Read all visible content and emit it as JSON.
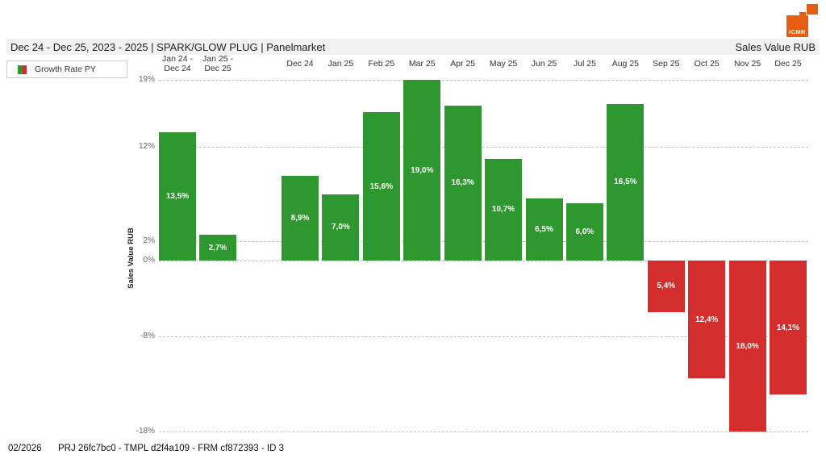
{
  "logo": {
    "text": "ICMR",
    "color": "#e55e14"
  },
  "header": {
    "title": "Dec 24 - Dec 25, 2023 - 2025 | SPARK/GLOW PLUG | Panelmarket",
    "measure": "Sales Value RUB"
  },
  "legend": {
    "label": "Growth Rate PY"
  },
  "footer": {
    "period": "02/2026",
    "reference": "PRJ 26fc7bc0 - TMPL d2f4a109 - FRM cf872393 - ID 3"
  },
  "chart_data": {
    "type": "bar",
    "title": "Growth Rate PY",
    "ylabel": "Sales Value RUB",
    "value_suffix": "%",
    "ylim": [
      -18,
      19
    ],
    "grid": true,
    "legend_position": "top-left",
    "gridline_values": [
      19,
      12,
      2,
      0,
      -8,
      -18
    ],
    "tick_labels": [
      "19%",
      "12%",
      "2%",
      "0%",
      "-8%",
      "-18%"
    ],
    "positive_color": "#2f972f",
    "negative_color": "#d32d2d",
    "yearly_totals": {
      "categories": [
        "Jan 24 -\nDec 24",
        "Jan 25 -\nDec 25"
      ],
      "values": [
        13.5,
        2.7
      ],
      "labels": [
        "13,5%",
        "2,7%"
      ]
    },
    "monthly": {
      "categories": [
        "Dec 24",
        "Jan 25",
        "Feb 25",
        "Mar 25",
        "Apr 25",
        "May 25",
        "Jun 25",
        "Jul 25",
        "Aug 25",
        "Sep 25",
        "Oct 25",
        "Nov 25",
        "Dec 25"
      ],
      "values": [
        8.9,
        7.0,
        15.6,
        19.0,
        16.3,
        10.7,
        6.5,
        6.0,
        16.5,
        -5.4,
        -12.4,
        -18.0,
        -14.1
      ],
      "labels": [
        "8,9%",
        "7,0%",
        "15,6%",
        "19,0%",
        "16,3%",
        "10,7%",
        "6,5%",
        "6,0%",
        "16,5%",
        "5,4%",
        "12,4%",
        "18,0%",
        "14,1%"
      ]
    }
  }
}
